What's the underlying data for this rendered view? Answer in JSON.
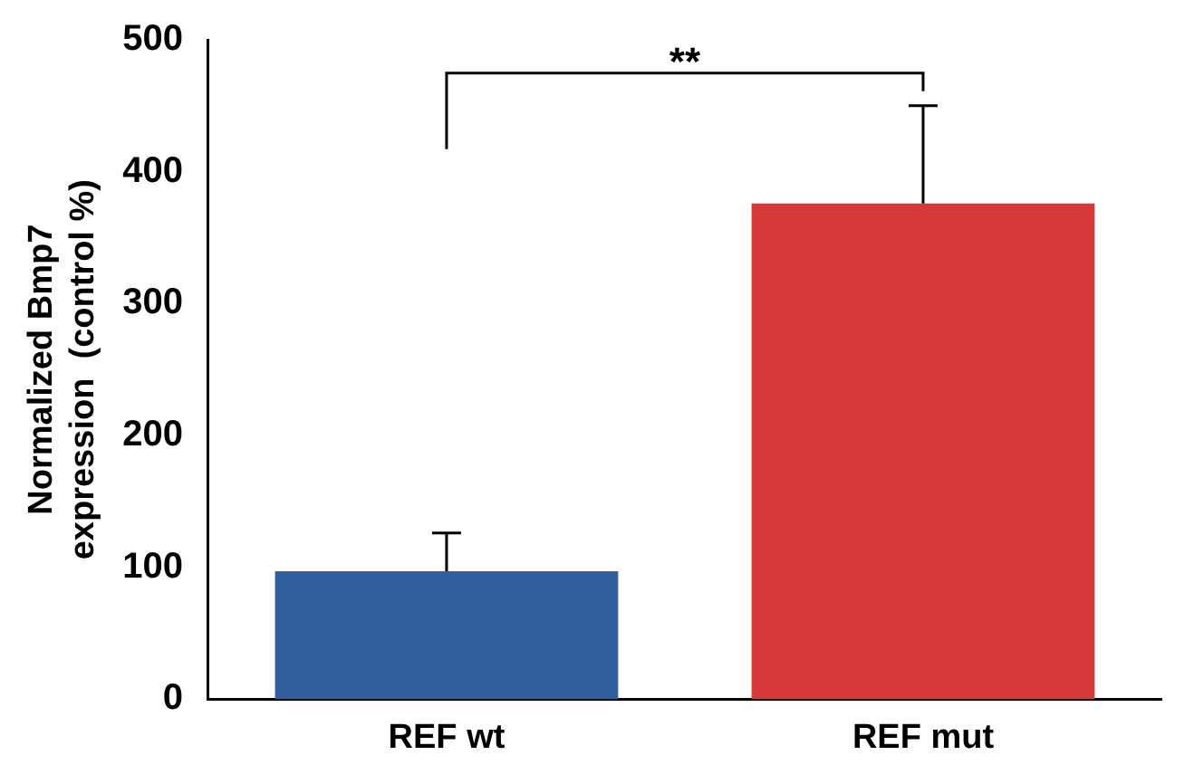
{
  "chart_data": {
    "type": "bar",
    "ylabel": "Normalized Bmp7\nexpression  (control %)",
    "categories": [
      "REF wt",
      "REF mut"
    ],
    "values": [
      97,
      376
    ],
    "colors": [
      "#2f5f9e",
      "#d63a38"
    ],
    "errors": [
      [
        97,
        126
      ],
      [
        376,
        450
      ]
    ],
    "ylim": [
      0,
      500
    ],
    "yticks": [
      0,
      100,
      200,
      300,
      400,
      500
    ],
    "grid": false,
    "legend": false,
    "annotations": [
      "**"
    ]
  }
}
